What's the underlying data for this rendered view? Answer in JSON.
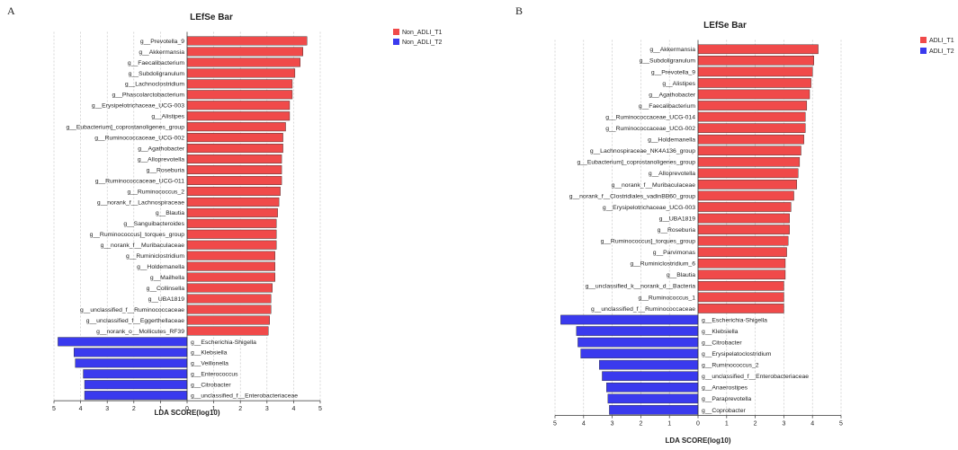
{
  "chart_data": [
    {
      "type": "bar",
      "panel": "A",
      "title": "LEfSe Bar",
      "xlabel": "LDA SCORE(log10)",
      "xlim": [
        -5,
        5
      ],
      "xticks": [
        "5",
        "4",
        "3",
        "2",
        "1",
        "0",
        "1",
        "2",
        "3",
        "4",
        "5"
      ],
      "colors": {
        "group1": "#f04a4a",
        "group2": "#3a3aee"
      },
      "legend": [
        {
          "name": "Non_ADLI_T1",
          "color": "#f04a4a"
        },
        {
          "name": "Non_ADLI_T2",
          "color": "#3a3aee"
        }
      ],
      "series": [
        {
          "name": "Non_ADLI_T1",
          "color": "#f04a4a",
          "categories": [
            "g__Prevotella_9",
            "g__Akkermansia",
            "g__Faecalibacterium",
            "g__Subdoligranulum",
            "g__Lachnoclostridium",
            "g__Phascolarctobacterium",
            "g__Erysipelotrichaceae_UCG-003",
            "g__Alistipes",
            "g__Eubacterium]_coprostanoligenes_group",
            "g__Ruminococcaceae_UCG-002",
            "g__Agathobacter",
            "g__Alloprevotella",
            "g__Roseburia",
            "g__Ruminococcaceae_UCG-011",
            "g__Ruminococcus_2",
            "g__norank_f__Lachnospiraceae",
            "g__Blautia",
            "g__Sanguibacteroides",
            "g__Ruminococcus]_torques_group",
            "g__norank_f__Muribaculaceae",
            "g__Ruminiclostridium",
            "g__Holdemanella",
            "g__Mailhella",
            "g__Collinsella",
            "g__UBA1819",
            "g__unclassified_f__Ruminococcaceae",
            "g__unclassified_f__Eggerthellaceae",
            "g__norank_o__Mollicutes_RF39"
          ],
          "values": [
            4.5,
            4.35,
            4.25,
            4.05,
            3.95,
            3.95,
            3.85,
            3.85,
            3.7,
            3.6,
            3.6,
            3.55,
            3.55,
            3.55,
            3.5,
            3.45,
            3.4,
            3.35,
            3.35,
            3.35,
            3.3,
            3.3,
            3.3,
            3.2,
            3.15,
            3.15,
            3.1,
            3.05
          ]
        },
        {
          "name": "Non_ADLI_T2",
          "color": "#3a3aee",
          "categories": [
            "g__Escherichia-Shigella",
            "g__Klebsiella",
            "g__Veillonella",
            "g__Enterococcus",
            "g__Citrobacter",
            "g__unclassified_f__Enterobacteriaceae"
          ],
          "values": [
            -4.85,
            -4.25,
            -4.2,
            -3.9,
            -3.85,
            -3.85
          ]
        }
      ]
    },
    {
      "type": "bar",
      "panel": "B",
      "title": "LEfSe Bar",
      "xlabel": "LDA SCORE(log10)",
      "xlim": [
        -5,
        5
      ],
      "xticks": [
        "5",
        "4",
        "3",
        "2",
        "1",
        "0",
        "1",
        "2",
        "3",
        "4",
        "5"
      ],
      "colors": {
        "group1": "#f04a4a",
        "group2": "#3a3aee"
      },
      "legend": [
        {
          "name": "ADLI_T1",
          "color": "#f04a4a"
        },
        {
          "name": "ADLI_T2",
          "color": "#3a3aee"
        }
      ],
      "series": [
        {
          "name": "ADLI_T1",
          "color": "#f04a4a",
          "categories": [
            "g__Akkermansia",
            "g__Subdoligranulum",
            "g__Prevotella_9",
            "g__Alistipes",
            "g__Agathobacter",
            "g__Faecalibacterium",
            "g__Ruminococcaceae_UCG-014",
            "g__Ruminococcaceae_UCG-002",
            "g__Holdemanella",
            "g__Lachnospiraceae_NK4A136_group",
            "g__Eubacterium]_coprostanoligenes_group",
            "g__Alloprevotella",
            "g__norank_f__Muribaculaceae",
            "g__norank_f__Clostridiales_vadinBB60_group",
            "g__Erysipelotrichaceae_UCG-003",
            "g__UBA1819",
            "g__Roseburia",
            "g__Ruminococcus]_torques_group",
            "g__Parvimonas",
            "g__Ruminiclostridium_6",
            "g__Blautia",
            "g__unclassified_k__norank_d__Bacteria",
            "g__Ruminococcus_1",
            "g__unclassified_f__Ruminococcaceae"
          ],
          "values": [
            4.2,
            4.05,
            4.0,
            3.95,
            3.9,
            3.8,
            3.75,
            3.75,
            3.7,
            3.6,
            3.55,
            3.5,
            3.45,
            3.35,
            3.25,
            3.2,
            3.2,
            3.15,
            3.1,
            3.05,
            3.05,
            3.0,
            3.0,
            3.0
          ]
        },
        {
          "name": "ADLI_T2",
          "color": "#3a3aee",
          "categories": [
            "g__Escherichia-Shigella",
            "g__Klebsiella",
            "g__Citrobacter",
            "g__Erysipelatoclostridium",
            "g__Ruminococcus_2",
            "g__unclassified_f__Enterobacteriaceae",
            "g__Anaerostipes",
            "g__Paraprevotella",
            "g__Coprobacter"
          ],
          "values": [
            -4.8,
            -4.25,
            -4.2,
            -4.1,
            -3.45,
            -3.35,
            -3.2,
            -3.15,
            -3.1
          ]
        }
      ]
    }
  ]
}
